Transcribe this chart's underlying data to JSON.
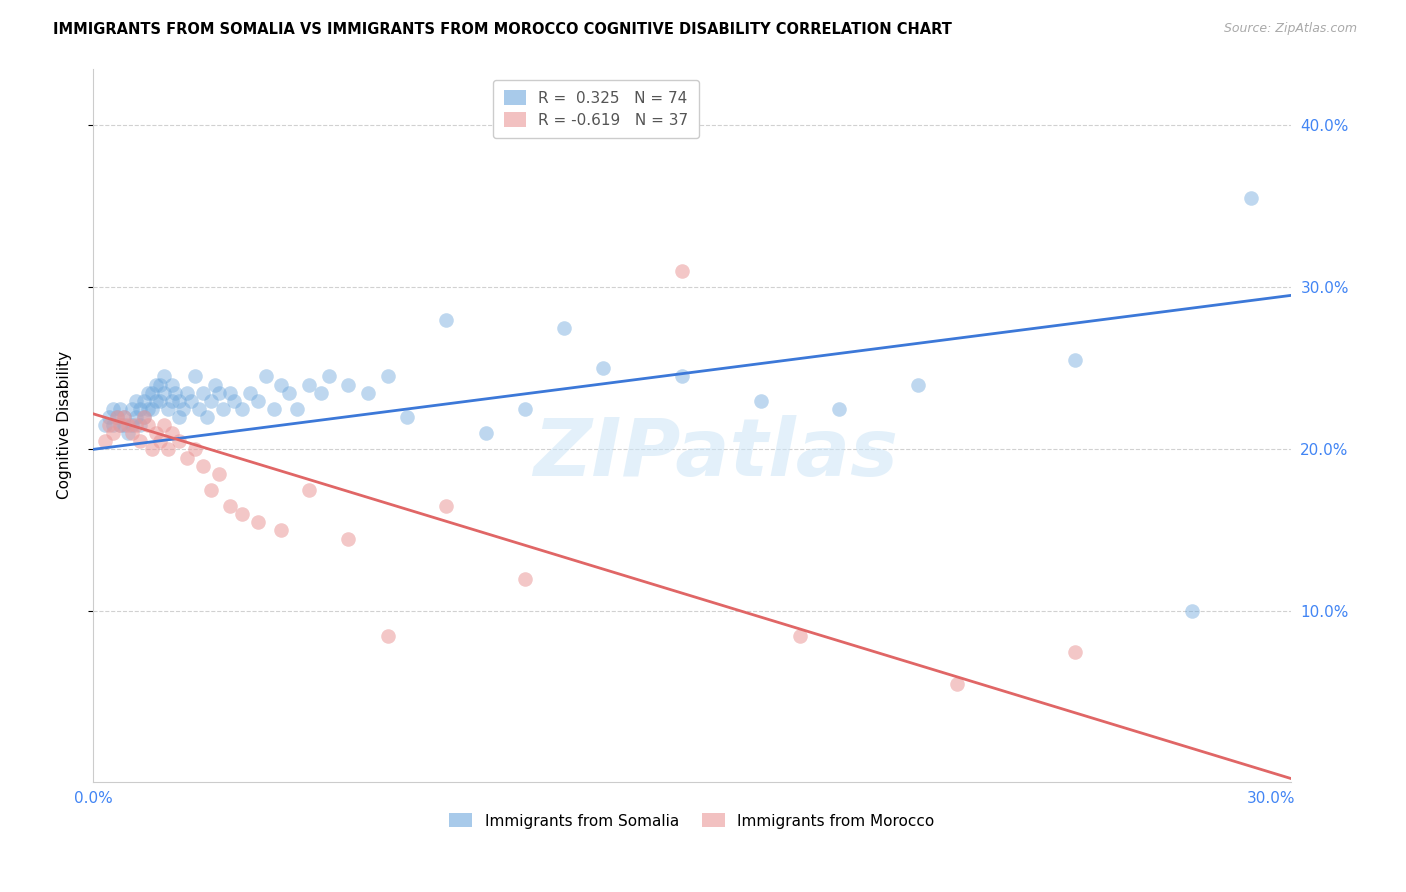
{
  "title": "IMMIGRANTS FROM SOMALIA VS IMMIGRANTS FROM MOROCCO COGNITIVE DISABILITY CORRELATION CHART",
  "source": "Source: ZipAtlas.com",
  "ylabel": "Cognitive Disability",
  "xlabel_somalia": "Immigrants from Somalia",
  "xlabel_morocco": "Immigrants from Morocco",
  "xlim": [
    0.0,
    0.305
  ],
  "ylim": [
    -0.005,
    0.435
  ],
  "ytick_vals": [
    0.1,
    0.2,
    0.3,
    0.4
  ],
  "ytick_labels": [
    "10.0%",
    "20.0%",
    "30.0%",
    "40.0%"
  ],
  "xtick_vals": [
    0.0,
    0.3
  ],
  "xtick_labels": [
    "0.0%",
    "30.0%"
  ],
  "somalia_color": "#6fa8dc",
  "morocco_color": "#ea9999",
  "somalia_line_color": "#3c78d8",
  "morocco_line_color": "#e06666",
  "background_color": "#ffffff",
  "grid_color": "#cccccc",
  "tick_color": "#4285f4",
  "r_somalia": "0.325",
  "n_somalia": "74",
  "r_morocco": "-0.619",
  "n_morocco": "37",
  "somalia_x": [
    0.003,
    0.004,
    0.005,
    0.005,
    0.006,
    0.007,
    0.007,
    0.008,
    0.008,
    0.009,
    0.01,
    0.01,
    0.011,
    0.011,
    0.012,
    0.012,
    0.013,
    0.013,
    0.014,
    0.014,
    0.015,
    0.015,
    0.016,
    0.016,
    0.017,
    0.017,
    0.018,
    0.018,
    0.019,
    0.02,
    0.02,
    0.021,
    0.022,
    0.022,
    0.023,
    0.024,
    0.025,
    0.026,
    0.027,
    0.028,
    0.029,
    0.03,
    0.031,
    0.032,
    0.033,
    0.035,
    0.036,
    0.038,
    0.04,
    0.042,
    0.044,
    0.046,
    0.048,
    0.05,
    0.052,
    0.055,
    0.058,
    0.06,
    0.065,
    0.07,
    0.075,
    0.08,
    0.09,
    0.1,
    0.11,
    0.12,
    0.13,
    0.15,
    0.17,
    0.19,
    0.21,
    0.25,
    0.28,
    0.295
  ],
  "somalia_y": [
    0.215,
    0.22,
    0.215,
    0.225,
    0.22,
    0.215,
    0.225,
    0.22,
    0.215,
    0.21,
    0.215,
    0.225,
    0.22,
    0.23,
    0.215,
    0.225,
    0.22,
    0.23,
    0.225,
    0.235,
    0.225,
    0.235,
    0.23,
    0.24,
    0.23,
    0.24,
    0.235,
    0.245,
    0.225,
    0.23,
    0.24,
    0.235,
    0.22,
    0.23,
    0.225,
    0.235,
    0.23,
    0.245,
    0.225,
    0.235,
    0.22,
    0.23,
    0.24,
    0.235,
    0.225,
    0.235,
    0.23,
    0.225,
    0.235,
    0.23,
    0.245,
    0.225,
    0.24,
    0.235,
    0.225,
    0.24,
    0.235,
    0.245,
    0.24,
    0.235,
    0.245,
    0.22,
    0.28,
    0.21,
    0.225,
    0.275,
    0.25,
    0.245,
    0.23,
    0.225,
    0.24,
    0.255,
    0.1,
    0.355
  ],
  "morocco_x": [
    0.003,
    0.004,
    0.005,
    0.006,
    0.007,
    0.008,
    0.009,
    0.01,
    0.011,
    0.012,
    0.013,
    0.014,
    0.015,
    0.016,
    0.017,
    0.018,
    0.019,
    0.02,
    0.022,
    0.024,
    0.026,
    0.028,
    0.03,
    0.032,
    0.035,
    0.038,
    0.042,
    0.048,
    0.055,
    0.065,
    0.075,
    0.09,
    0.11,
    0.15,
    0.18,
    0.22,
    0.25
  ],
  "morocco_y": [
    0.205,
    0.215,
    0.21,
    0.22,
    0.215,
    0.22,
    0.215,
    0.21,
    0.215,
    0.205,
    0.22,
    0.215,
    0.2,
    0.21,
    0.205,
    0.215,
    0.2,
    0.21,
    0.205,
    0.195,
    0.2,
    0.19,
    0.175,
    0.185,
    0.165,
    0.16,
    0.155,
    0.15,
    0.175,
    0.145,
    0.085,
    0.165,
    0.12,
    0.31,
    0.085,
    0.055,
    0.075
  ],
  "somalia_line_x": [
    0.0,
    0.305
  ],
  "somalia_line_y": [
    0.2,
    0.295
  ],
  "morocco_line_x": [
    0.0,
    0.305
  ],
  "morocco_line_y": [
    0.222,
    -0.003
  ],
  "watermark": "ZIPatlas",
  "title_fontsize": 10.5,
  "tick_fontsize": 11,
  "ylabel_fontsize": 11,
  "legend_fontsize": 11
}
